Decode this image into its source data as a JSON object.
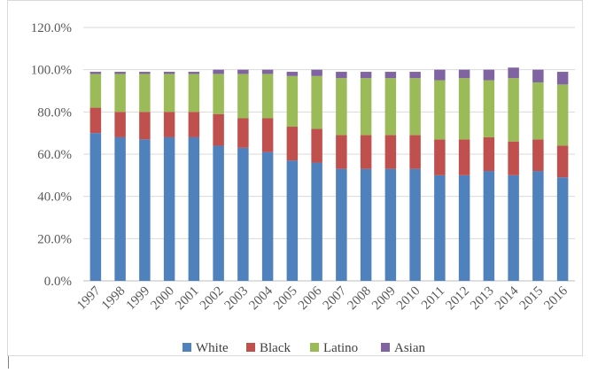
{
  "chart_data": {
    "type": "bar",
    "stacked": true,
    "title": "",
    "xlabel": "",
    "ylabel": "",
    "ylim": [
      0,
      120
    ],
    "y_tick_values": [
      0,
      20,
      40,
      60,
      80,
      100,
      120
    ],
    "y_tick_labels": [
      "0.0%",
      "20.0%",
      "40.0%",
      "60.0%",
      "80.0%",
      "100.0%",
      "120.0%"
    ],
    "grid": "horizontal",
    "legend_position": "bottom",
    "categories": [
      "1997",
      "1998",
      "1999",
      "2000",
      "2001",
      "2002",
      "2003",
      "2004",
      "2005",
      "2006",
      "2007",
      "2008",
      "2009",
      "2010",
      "2011",
      "2012",
      "2013",
      "2014",
      "2015",
      "2016"
    ],
    "series": [
      {
        "name": "White",
        "color": "#4f81bd",
        "values": [
          70,
          68,
          67,
          68,
          68,
          64,
          63,
          61,
          57,
          56,
          53,
          53,
          53,
          53,
          50,
          50,
          52,
          50,
          52,
          49
        ]
      },
      {
        "name": "Black",
        "color": "#c0504d",
        "values": [
          12,
          12,
          13,
          12,
          12,
          15,
          14,
          16,
          16,
          16,
          16,
          16,
          16,
          16,
          17,
          17,
          16,
          16,
          15,
          15
        ]
      },
      {
        "name": "Latino",
        "color": "#9bbb59",
        "values": [
          16,
          18,
          18,
          18,
          18,
          19,
          21,
          21,
          24,
          25,
          27,
          27,
          27,
          27,
          28,
          29,
          27,
          30,
          27,
          29
        ]
      },
      {
        "name": "Asian",
        "color": "#8064a2",
        "values": [
          1,
          1,
          1,
          1,
          1,
          2,
          2,
          2,
          2,
          3,
          3,
          3,
          3,
          3,
          5,
          4,
          5,
          5,
          6,
          6
        ]
      }
    ]
  }
}
